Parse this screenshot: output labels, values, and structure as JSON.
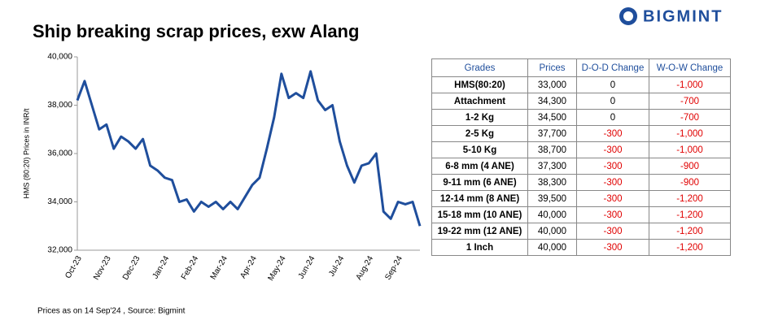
{
  "logo": "BIGMINT",
  "footer": "Prices as on 14 Sep'24 , Source: Bigmint",
  "chart_data": {
    "type": "line",
    "title": "Ship breaking scrap prices, exw Alang",
    "y_label": "HMS (80:20) Prices in INR/t",
    "categories": [
      "Oct-23",
      null,
      null,
      null,
      "Nov-23",
      null,
      null,
      null,
      "Dec-23",
      null,
      null,
      null,
      "Jan-24",
      null,
      null,
      null,
      "Feb-24",
      null,
      null,
      null,
      "Mar-24",
      null,
      null,
      null,
      "Apr-24",
      null,
      null,
      null,
      "May-24",
      null,
      null,
      null,
      "Jun-24",
      null,
      null,
      null,
      "Jul-24",
      null,
      null,
      null,
      "Aug-24",
      null,
      null,
      null,
      "Sep-24",
      null,
      null,
      null
    ],
    "series": [
      {
        "name": "HMS(80:20)",
        "color": "#1f4e9c",
        "values": [
          38200,
          39000,
          38000,
          37000,
          37200,
          36200,
          36700,
          36500,
          36200,
          36600,
          35500,
          35300,
          35000,
          34900,
          34000,
          34100,
          33600,
          34000,
          33800,
          34000,
          33700,
          34000,
          33700,
          34200,
          34700,
          35000,
          36200,
          37500,
          39300,
          38300,
          38500,
          38300,
          39400,
          38200,
          37800,
          38000,
          36500,
          35500,
          34800,
          35500,
          35600,
          36000,
          33600,
          33300,
          34000,
          33900,
          34000,
          33000
        ]
      }
    ],
    "ylim": [
      32000,
      40000
    ],
    "yticks": [
      {
        "value": 32000,
        "label": "32,000"
      },
      {
        "value": 34000,
        "label": "34,000"
      },
      {
        "value": 36000,
        "label": "36,000"
      },
      {
        "value": 38000,
        "label": "38,000"
      },
      {
        "value": 40000,
        "label": "40,000"
      }
    ]
  },
  "table": {
    "header": [
      "Grades",
      "Prices",
      "D-O-D Change",
      "W-O-W Change"
    ],
    "rows": [
      [
        "HMS(80:20)",
        "33,000",
        "0",
        "-1,000"
      ],
      [
        "Attachment",
        "34,300",
        "0",
        "-700"
      ],
      [
        "1-2 Kg",
        "34,500",
        "0",
        "-700"
      ],
      [
        "2-5 Kg",
        "37,700",
        "-300",
        "-1,000"
      ],
      [
        "5-10 Kg",
        "38,700",
        "-300",
        "-1,000"
      ],
      [
        "6-8 mm (4 ANE)",
        "37,300",
        "-300",
        "-900"
      ],
      [
        "9-11 mm (6 ANE)",
        "38,300",
        "-300",
        "-900"
      ],
      [
        "12-14 mm (8 ANE)",
        "39,500",
        "-300",
        "-1,200"
      ],
      [
        "15-18 mm (10 ANE)",
        "40,000",
        "-300",
        "-1,200"
      ],
      [
        "19-22 mm (12 ANE)",
        "40,000",
        "-300",
        "-1,200"
      ],
      [
        "1 Inch",
        "40,000",
        "-300",
        "-1,200"
      ]
    ]
  }
}
